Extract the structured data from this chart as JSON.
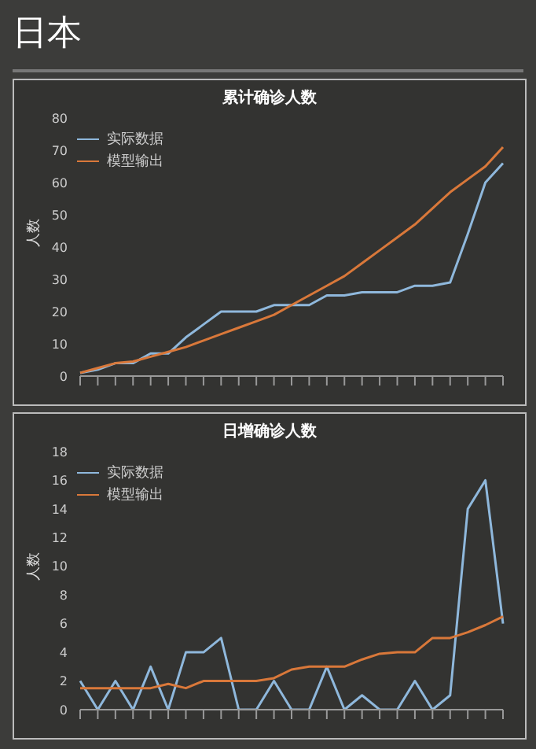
{
  "chart_data": [
    {
      "type": "line",
      "title": "累计确诊人数",
      "ylabel": "人数",
      "annotations": [
        "日本"
      ],
      "categories": [
        null,
        null,
        null,
        null,
        null,
        null,
        null,
        null,
        null,
        null,
        null,
        null,
        null,
        null,
        null,
        null,
        null,
        null,
        null,
        null,
        null,
        null,
        null,
        null,
        null
      ],
      "series": [
        {
          "name": "实际数据",
          "color": "#8fb8dc",
          "values": [
            1,
            2,
            4,
            4,
            7,
            7,
            12,
            16,
            20,
            20,
            20,
            22,
            22,
            22,
            25,
            25,
            26,
            26,
            26,
            28,
            28,
            29,
            44,
            60,
            66
          ]
        },
        {
          "name": "模型输出",
          "color": "#d9783a",
          "values": [
            1,
            2.5,
            4,
            4.5,
            6,
            7.5,
            9,
            11,
            13,
            15,
            17,
            19,
            22,
            25,
            28,
            31,
            35,
            39,
            43,
            47,
            52,
            57,
            61,
            65,
            71
          ]
        }
      ],
      "ylim": [
        0,
        80
      ],
      "yticks": [
        0,
        10,
        20,
        30,
        40,
        50,
        60,
        70,
        80
      ],
      "grid": false,
      "legend": "top left",
      "marker": "none",
      "line_style": "solid"
    },
    {
      "type": "line",
      "title": "日增确诊人数",
      "ylabel": "人数",
      "categories": [
        null,
        null,
        null,
        null,
        null,
        null,
        null,
        null,
        null,
        null,
        null,
        null,
        null,
        null,
        null,
        null,
        null,
        null,
        null,
        null,
        null,
        null,
        null,
        null,
        null
      ],
      "series": [
        {
          "name": "实际数据",
          "color": "#8fb8dc",
          "values": [
            2,
            0,
            2,
            0,
            3,
            0,
            4,
            4,
            5,
            0,
            0,
            2,
            0,
            0,
            3,
            0,
            1,
            0,
            0,
            2,
            0,
            1,
            14,
            16,
            6
          ]
        },
        {
          "name": "模型输出",
          "color": "#d9783a",
          "values": [
            1.5,
            1.5,
            1.5,
            1.5,
            1.5,
            1.8,
            1.5,
            2,
            2,
            2,
            2,
            2.2,
            2.8,
            3,
            3,
            3,
            3.5,
            3.9,
            4,
            4,
            5,
            5,
            5.4,
            5.9,
            6.5
          ]
        }
      ],
      "ylim": [
        0,
        18
      ],
      "yticks": [
        0,
        2,
        4,
        6,
        8,
        10,
        12,
        14,
        16,
        18
      ],
      "grid": false,
      "legend": "top left",
      "marker": "none",
      "line_style": "solid"
    }
  ]
}
